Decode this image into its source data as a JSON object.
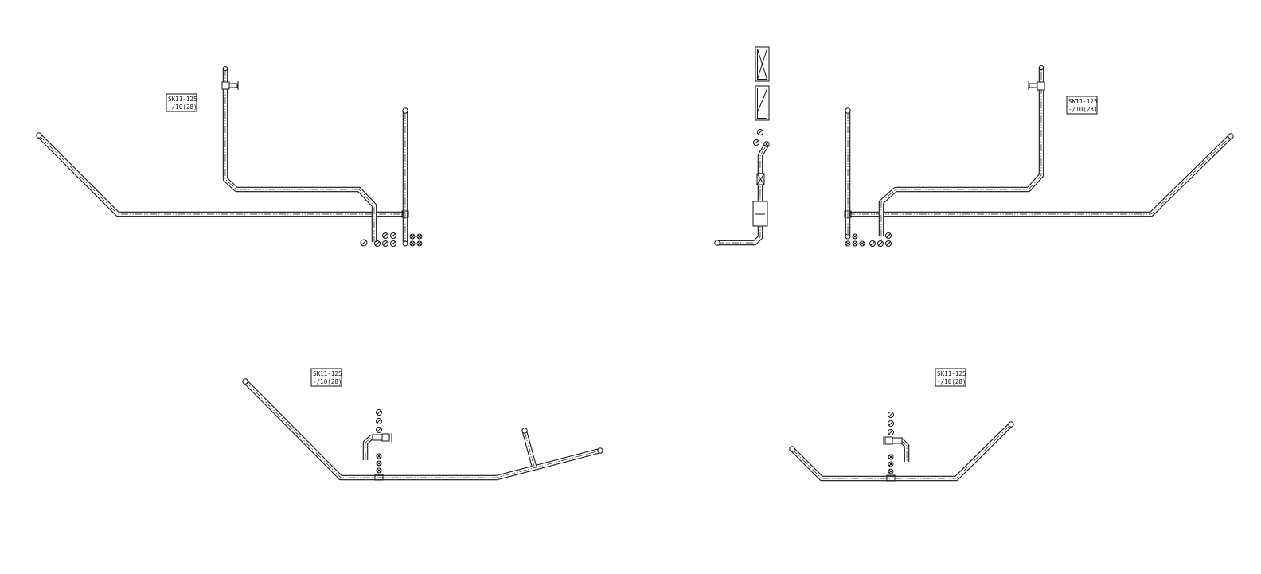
{
  "drawing": {
    "labels": {
      "top_left": [
        "SK11-125",
        "-/10(28)"
      ],
      "top_right": [
        "SK11-125",
        "-/10(28)"
      ],
      "bottom_left": [
        "SK11-125",
        "-/10(28)"
      ],
      "bottom_right": [
        "SK11-125",
        "-/10(28)"
      ]
    },
    "colors": {
      "line": "#111111",
      "background": "#ffffff"
    }
  }
}
